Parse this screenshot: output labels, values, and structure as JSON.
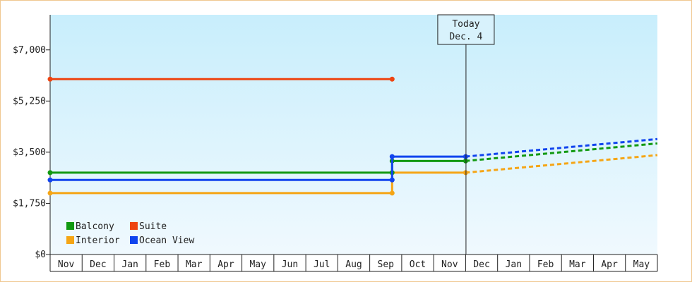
{
  "chart_data": {
    "type": "line",
    "y_tick_labels": [
      "$0",
      "$1,750",
      "$3,500",
      "$5,250",
      "$7,000"
    ],
    "y_tick_values": [
      0,
      1750,
      3500,
      5250,
      7000
    ],
    "ylim": [
      0,
      8200
    ],
    "months": [
      "Nov",
      "Dec",
      "Jan",
      "Feb",
      "Mar",
      "Apr",
      "May",
      "Jun",
      "Jul",
      "Aug",
      "Sep",
      "Oct",
      "Nov",
      "Dec",
      "Jan",
      "Feb",
      "Mar",
      "Apr",
      "May"
    ],
    "today_marker": {
      "line1": "Today",
      "line2": "Dec. 4",
      "x": 13
    },
    "background": {
      "top": "#c8eefc",
      "bottom": "#f0f9fe"
    },
    "series": [
      {
        "name": "Balcony",
        "color": "#119911",
        "historical": [
          [
            0,
            2800
          ],
          [
            10.7,
            2800
          ],
          [
            10.7,
            3200
          ],
          [
            13,
            3200
          ]
        ],
        "forecast": [
          [
            13,
            3200
          ],
          [
            19,
            3800
          ]
        ]
      },
      {
        "name": "Suite",
        "color": "#ee4411",
        "historical": [
          [
            0,
            6000
          ],
          [
            10.7,
            6000
          ]
        ],
        "forecast": []
      },
      {
        "name": "Interior",
        "color": "#f5a515",
        "historical": [
          [
            0,
            2100
          ],
          [
            10.7,
            2100
          ],
          [
            10.7,
            2800
          ],
          [
            13,
            2800
          ]
        ],
        "forecast": [
          [
            13,
            2800
          ],
          [
            19,
            3400
          ]
        ]
      },
      {
        "name": "Ocean View",
        "color": "#1144ee",
        "historical": [
          [
            0,
            2550
          ],
          [
            10.7,
            2550
          ],
          [
            10.7,
            3350
          ],
          [
            13,
            3350
          ]
        ],
        "forecast": [
          [
            13,
            3350
          ],
          [
            19,
            3950
          ]
        ]
      }
    ]
  }
}
